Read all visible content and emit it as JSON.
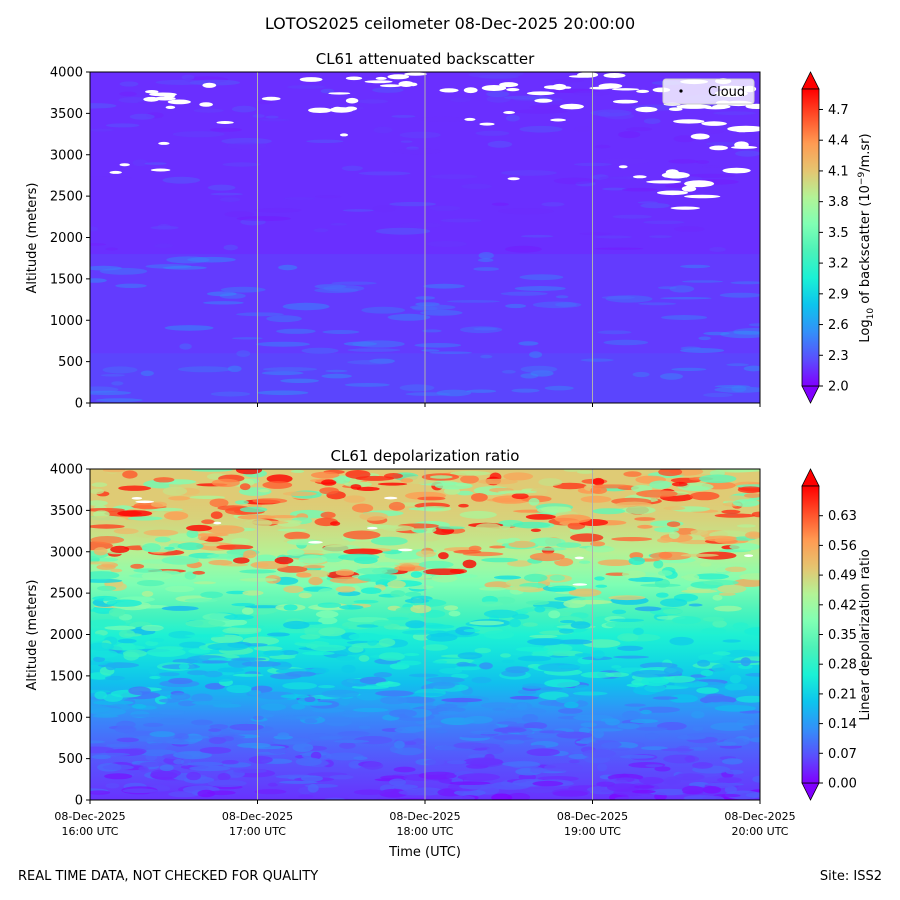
{
  "suptitle": "LOTOS2025 ceilometer 08-Dec-2025 20:00:00",
  "footer": {
    "left": "REAL TIME DATA, NOT CHECKED FOR QUALITY",
    "right": "Site: ISS2"
  },
  "colors": {
    "rainbow": [
      "#8000ff",
      "#5a4ffd",
      "#3390f8",
      "#0dc4ed",
      "#1af1d5",
      "#4cf2b8",
      "#80ffb4",
      "#b3f396",
      "#e6c470",
      "#ff9a52",
      "#ff4f29",
      "#ff0000"
    ],
    "grid": "#b0b0b0"
  },
  "chart_data": [
    {
      "type": "heatmap",
      "title": "CL61 attenuated backscatter",
      "xlabel": "",
      "ylabel": "Altitude (meters)",
      "x_ticks": [
        [
          "08-Dec-2025",
          "16:00 UTC"
        ],
        [
          "08-Dec-2025",
          "17:00 UTC"
        ],
        [
          "08-Dec-2025",
          "18:00 UTC"
        ],
        [
          "08-Dec-2025",
          "19:00 UTC"
        ],
        [
          "08-Dec-2025",
          "20:00 UTC"
        ]
      ],
      "show_x_tick_labels": false,
      "xlim": [
        "08-Dec-2025 16:00 UTC",
        "08-Dec-2025 20:00 UTC"
      ],
      "ylim": [
        0,
        4000
      ],
      "y_ticks": [
        0,
        500,
        1000,
        1500,
        2000,
        2500,
        3000,
        3500,
        4000
      ],
      "grid": "vertical lines at hourly ticks",
      "legend": {
        "position": "upper right",
        "entries": [
          "Cloud"
        ]
      },
      "colorbar": {
        "label": "Log10 of backscatter (10^-9/m.sr)",
        "label_parts": {
          "a": "Log",
          "sub": "10",
          "b": " of backscatter (10",
          "sup": "−9",
          "c": "/m.sr)"
        },
        "range": [
          2.0,
          4.9
        ],
        "ticks": [
          "2.0",
          "2.3",
          "2.6",
          "2.9",
          "3.2",
          "3.5",
          "3.8",
          "4.1",
          "4.4",
          "4.7"
        ],
        "extend": "both"
      },
      "field": {
        "description_levels": [
          2.0,
          2.5
        ],
        "typical_low": 2.25,
        "typical_high": 2.05
      }
    },
    {
      "type": "heatmap",
      "title": "CL61 depolarization ratio",
      "xlabel": "Time (UTC)",
      "ylabel": "Altitude (meters)",
      "x_ticks": [
        [
          "08-Dec-2025",
          "16:00 UTC"
        ],
        [
          "08-Dec-2025",
          "17:00 UTC"
        ],
        [
          "08-Dec-2025",
          "18:00 UTC"
        ],
        [
          "08-Dec-2025",
          "19:00 UTC"
        ],
        [
          "08-Dec-2025",
          "20:00 UTC"
        ]
      ],
      "show_x_tick_labels": true,
      "xlim": [
        "08-Dec-2025 16:00 UTC",
        "08-Dec-2025 20:00 UTC"
      ],
      "ylim": [
        0,
        4000
      ],
      "y_ticks": [
        0,
        500,
        1000,
        1500,
        2000,
        2500,
        3000,
        3500,
        4000
      ],
      "grid": "vertical lines at hourly ticks",
      "colorbar": {
        "label": "Linear depolarization ratio",
        "range": [
          0.0,
          0.7
        ],
        "ticks": [
          "0.00",
          "0.07",
          "0.14",
          "0.21",
          "0.28",
          "0.35",
          "0.42",
          "0.49",
          "0.56",
          "0.63"
        ],
        "extend": "both"
      },
      "profile": [
        {
          "altitude": 0,
          "value": 0.04
        },
        {
          "altitude": 500,
          "value": 0.07
        },
        {
          "altitude": 1000,
          "value": 0.12
        },
        {
          "altitude": 1500,
          "value": 0.2
        },
        {
          "altitude": 2000,
          "value": 0.26
        },
        {
          "altitude": 2500,
          "value": 0.36
        },
        {
          "altitude": 3000,
          "value": 0.45
        },
        {
          "altitude": 3500,
          "value": 0.5
        },
        {
          "altitude": 4000,
          "value": 0.5
        }
      ]
    }
  ]
}
